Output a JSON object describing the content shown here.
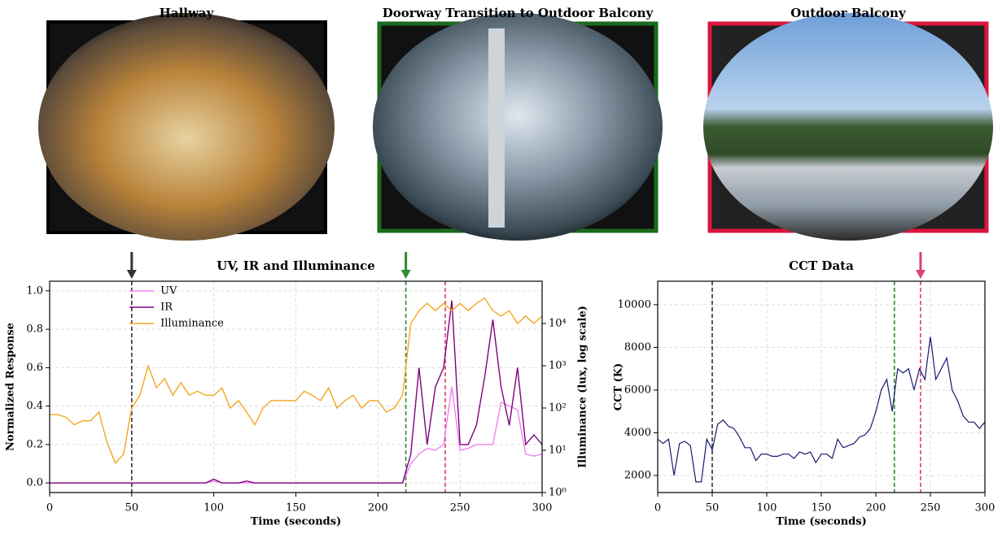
{
  "panels": [
    {
      "title": "Hallway",
      "color": "#000000"
    },
    {
      "title": "Doorway Transition to Outdoor Balcony",
      "color": "#1a6b1a"
    },
    {
      "title": "Outdoor Balcony",
      "color": "#dc143c"
    }
  ],
  "chart_data": [
    {
      "type": "line",
      "title": "UV, IR and Illuminance",
      "xlabel": "Time (seconds)",
      "ylabel": "Normalized Response",
      "ylabel_color": "#800080",
      "y2label": "Illuminance (lux, log scale)",
      "y2label_color": "#f5a623",
      "xlim": [
        0,
        300
      ],
      "xticks": [
        0,
        50,
        100,
        150,
        200,
        250,
        300
      ],
      "ylim": [
        -0.05,
        1.05
      ],
      "yticks": [
        {
          "value": 0,
          "label": "0.0"
        },
        0.2,
        0.4,
        0.6,
        0.8,
        {
          "value": 1,
          "label": "1.0"
        }
      ],
      "y2lim": [
        1,
        100000
      ],
      "y2scale": "log",
      "y2ticks": [
        {
          "value": 1,
          "label": "10⁰"
        },
        {
          "value": 10,
          "label": "10¹"
        },
        {
          "value": 100,
          "label": "10²"
        },
        {
          "value": 1000,
          "label": "10³"
        },
        {
          "value": 10000,
          "label": "10⁴"
        }
      ],
      "grid": true,
      "legend": "upper left",
      "events": [
        {
          "x": 50,
          "color": "#333333",
          "arrow": true
        },
        {
          "x": 217,
          "color": "#2e8b2e",
          "arrow": true
        },
        {
          "x": 241,
          "color": "#dc4070",
          "arrow": false
        }
      ],
      "x": [
        0,
        5,
        10,
        15,
        20,
        25,
        30,
        35,
        40,
        45,
        50,
        55,
        60,
        65,
        70,
        75,
        80,
        85,
        90,
        95,
        100,
        105,
        110,
        115,
        120,
        125,
        130,
        135,
        140,
        145,
        150,
        155,
        160,
        165,
        170,
        175,
        180,
        185,
        190,
        195,
        200,
        205,
        210,
        215,
        220,
        225,
        230,
        235,
        240,
        245,
        250,
        255,
        260,
        265,
        270,
        275,
        280,
        285,
        290,
        295,
        300
      ],
      "series": [
        {
          "name": "UV",
          "color": "#ee82ee",
          "values": [
            0,
            0,
            0,
            0,
            0,
            0,
            0,
            0,
            0,
            0,
            0,
            0,
            0,
            0,
            0,
            0,
            0,
            0,
            0,
            0,
            0.01,
            0,
            0,
            0,
            0,
            0,
            0,
            0,
            0,
            0,
            0,
            0,
            0,
            0,
            0,
            0,
            0,
            0,
            0,
            0,
            0,
            0,
            0,
            0,
            0.1,
            0.15,
            0.18,
            0.17,
            0.2,
            0.5,
            0.17,
            0.18,
            0.2,
            0.2,
            0.2,
            0.42,
            0.4,
            0.38,
            0.15,
            0.14,
            0.15
          ]
        },
        {
          "name": "IR",
          "color": "#800080",
          "values": [
            0,
            0,
            0,
            0,
            0,
            0,
            0,
            0,
            0,
            0,
            0,
            0,
            0,
            0,
            0,
            0,
            0,
            0,
            0,
            0,
            0.02,
            0,
            0,
            0,
            0.01,
            0,
            0,
            0,
            0,
            0,
            0,
            0,
            0,
            0,
            0,
            0,
            0,
            0,
            0,
            0,
            0,
            0,
            0,
            0,
            0.15,
            0.6,
            0.2,
            0.5,
            0.6,
            0.95,
            0.2,
            0.2,
            0.3,
            0.55,
            0.85,
            0.5,
            0.3,
            0.6,
            0.2,
            0.25,
            0.2
          ]
        },
        {
          "name": "Illuminance",
          "color": "#f5a623",
          "axis": "y2",
          "values": [
            70,
            70,
            60,
            40,
            50,
            50,
            80,
            15,
            5,
            8,
            100,
            200,
            1000,
            300,
            500,
            200,
            400,
            200,
            250,
            200,
            200,
            300,
            100,
            150,
            80,
            40,
            100,
            150,
            150,
            150,
            150,
            250,
            200,
            150,
            300,
            100,
            150,
            200,
            100,
            150,
            150,
            80,
            100,
            200,
            10000,
            20000,
            30000,
            20000,
            30000,
            20000,
            30000,
            20000,
            30000,
            40000,
            20000,
            15000,
            20000,
            10000,
            15000,
            10000,
            15000
          ]
        }
      ]
    },
    {
      "type": "line",
      "title": "CCT Data",
      "xlabel": "Time (seconds)",
      "ylabel": "CCT (K)",
      "ylabel_color": "#191970",
      "xlim": [
        0,
        300
      ],
      "xticks": [
        0,
        50,
        100,
        150,
        200,
        250,
        300
      ],
      "ylim": [
        1200,
        11100
      ],
      "yticks": [
        2000,
        4000,
        6000,
        8000,
        10000
      ],
      "grid": true,
      "color": "#191970",
      "events": [
        {
          "x": 50,
          "color": "#333333",
          "arrow": false
        },
        {
          "x": 217,
          "color": "#2e8b2e",
          "arrow": false
        },
        {
          "x": 241,
          "color": "#dc4070",
          "arrow": true
        }
      ],
      "x": [
        0,
        5,
        10,
        15,
        20,
        25,
        30,
        35,
        40,
        45,
        50,
        55,
        60,
        65,
        70,
        75,
        80,
        85,
        90,
        95,
        100,
        105,
        110,
        115,
        120,
        125,
        130,
        135,
        140,
        145,
        150,
        155,
        160,
        165,
        170,
        175,
        180,
        185,
        190,
        195,
        200,
        205,
        210,
        215,
        220,
        225,
        230,
        235,
        240,
        245,
        250,
        255,
        260,
        265,
        270,
        275,
        280,
        285,
        290,
        295,
        300
      ],
      "values": [
        3700,
        3500,
        3700,
        2000,
        3500,
        3600,
        3400,
        1700,
        1700,
        3700,
        3200,
        4400,
        4600,
        4300,
        4200,
        3800,
        3300,
        3300,
        2700,
        3000,
        3000,
        2900,
        2900,
        3000,
        3000,
        2800,
        3100,
        3000,
        3100,
        2600,
        3000,
        3000,
        2800,
        3700,
        3300,
        3400,
        3500,
        3800,
        3900,
        4200,
        5000,
        6000,
        6500,
        5000,
        7000,
        6800,
        7000,
        6000,
        7000,
        6500,
        8500,
        6500,
        7000,
        7500,
        6000,
        5500,
        4800,
        4500,
        4500,
        4200,
        4500
      ]
    }
  ]
}
